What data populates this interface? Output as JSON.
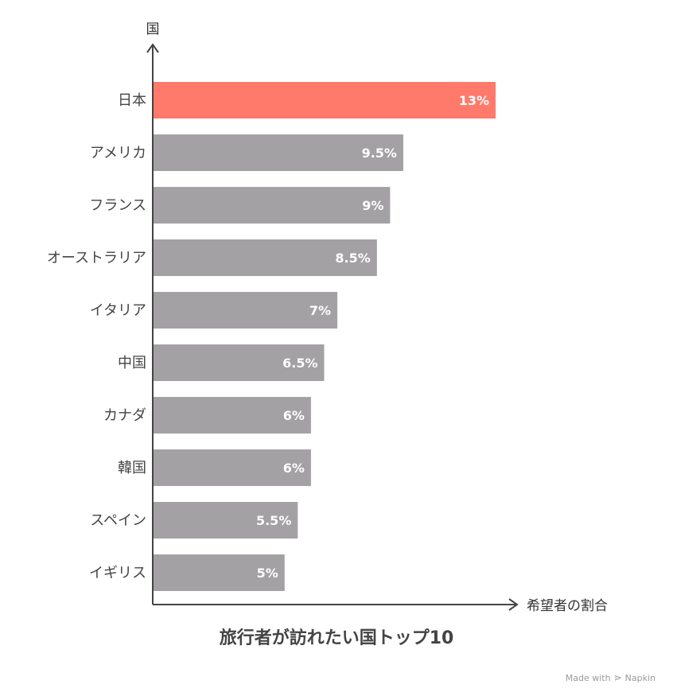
{
  "chart_data": {
    "type": "bar",
    "orientation": "horizontal",
    "title": "旅行者が訪れたい国トップ10",
    "ylabel": "国",
    "xlabel": "希望者の割合",
    "categories": [
      "日本",
      "アメリカ",
      "フランス",
      "オーストラリア",
      "イタリア",
      "中国",
      "カナダ",
      "韓国",
      "スペイン",
      "イギリス"
    ],
    "values": [
      13,
      9.5,
      9,
      8.5,
      7,
      6.5,
      6,
      6,
      5.5,
      5
    ],
    "value_labels": [
      "13%",
      "9.5%",
      "9%",
      "8.5%",
      "7%",
      "6.5%",
      "6%",
      "6%",
      "5.5%",
      "5%"
    ],
    "unit": "%",
    "highlight_index": 0,
    "colors": {
      "highlight": "#FF7A6B",
      "default": "#A3A1A3",
      "axis": "#444444"
    },
    "grid": false,
    "legend": "none"
  },
  "footer": {
    "made_with": "Made with",
    "brand_name": "Napkin"
  }
}
